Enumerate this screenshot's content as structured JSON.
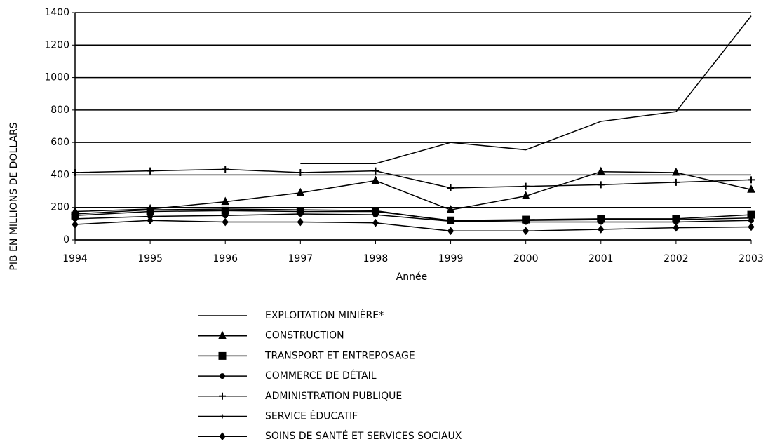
{
  "chart_data": {
    "type": "line",
    "x": [
      1994,
      1995,
      1996,
      1997,
      1998,
      1999,
      2000,
      2001,
      2002,
      2003
    ],
    "xlim": [
      1994,
      2003
    ],
    "xticks": [
      1994,
      1995,
      1996,
      1997,
      1998,
      1999,
      2000,
      2001,
      2002,
      2003
    ],
    "ylim": [
      0,
      1400
    ],
    "yticks": [
      0,
      200,
      400,
      600,
      800,
      1000,
      1200,
      1400
    ],
    "xlabel": "Année",
    "ylabel": "PIB EN MILLIONS DE DOLLARS",
    "grid": true,
    "series": [
      {
        "name": "EXPLOITATION MINIÈRE*",
        "color": "#000000",
        "marker": "none",
        "values": [
          null,
          null,
          null,
          470,
          470,
          600,
          555,
          730,
          790,
          1380
        ]
      },
      {
        "name": "CONSTRUCTION",
        "color": "#000000",
        "marker": "triangle",
        "values": [
          175,
          190,
          235,
          290,
          365,
          185,
          270,
          420,
          415,
          310
        ]
      },
      {
        "name": "TRANSPORT ET ENTREPOSAGE",
        "color": "#000000",
        "marker": "square",
        "values": [
          150,
          175,
          180,
          175,
          175,
          120,
          125,
          130,
          130,
          155
        ]
      },
      {
        "name": "COMMERCE DE DÉTAIL",
        "color": "#000000",
        "marker": "circle",
        "values": [
          130,
          145,
          150,
          160,
          155,
          115,
          110,
          110,
          110,
          120
        ]
      },
      {
        "name": "ADMINISTRATION PUBLIQUE",
        "color": "#000000",
        "marker": "plus",
        "values": [
          415,
          425,
          435,
          415,
          425,
          320,
          330,
          340,
          355,
          370
        ]
      },
      {
        "name": "SERVICE ÉDUCATIF",
        "color": "#000000",
        "marker": "star",
        "values": [
          160,
          185,
          190,
          185,
          180,
          115,
          120,
          125,
          125,
          135
        ]
      },
      {
        "name": "SOINS DE SANTÉ ET SERVICES SOCIAUX",
        "color": "#000000",
        "marker": "diamond",
        "values": [
          95,
          120,
          110,
          110,
          105,
          55,
          55,
          65,
          75,
          80
        ]
      }
    ]
  }
}
